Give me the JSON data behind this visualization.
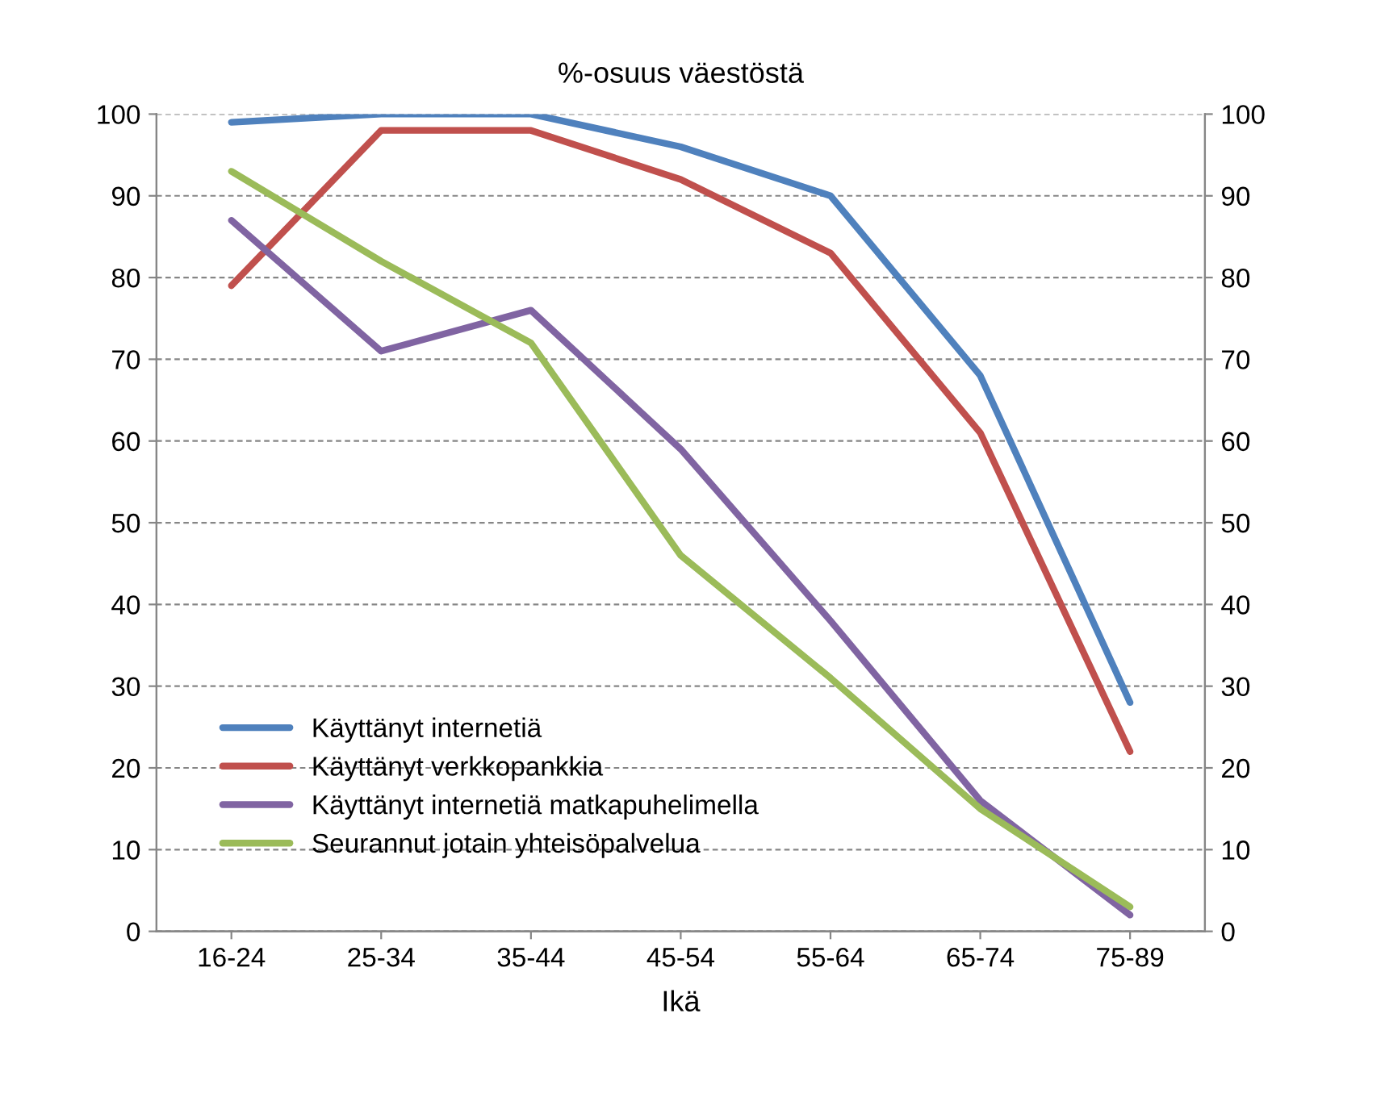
{
  "chart_data": {
    "type": "line",
    "title": "%-osuus väestöstä",
    "xlabel": "Ikä",
    "categories": [
      "16-24",
      "25-34",
      "35-44",
      "45-54",
      "55-64",
      "65-74",
      "75-89"
    ],
    "series": [
      {
        "name": "Käyttänyt internetiä",
        "color": "#4f81bd",
        "values": [
          99,
          100,
          100,
          96,
          90,
          68,
          28
        ]
      },
      {
        "name": "Käyttänyt verkkopankkia",
        "color": "#c0504d",
        "values": [
          79,
          98,
          98,
          92,
          83,
          61,
          22
        ]
      },
      {
        "name": "Käyttänyt internetiä matkapuhelimella",
        "color": "#8064a2",
        "values": [
          87,
          71,
          76,
          59,
          38,
          16,
          2
        ]
      },
      {
        "name": "Seurannut jotain yhteisöpalvelua",
        "color": "#9bbb59",
        "values": [
          93,
          82,
          72,
          46,
          31,
          15,
          3
        ]
      }
    ],
    "ylim": [
      0,
      100
    ],
    "yticks": [
      0,
      10,
      20,
      30,
      40,
      50,
      60,
      70,
      80,
      90,
      100
    ],
    "y2lim": [
      0,
      100
    ],
    "y2ticks": [
      0,
      10,
      20,
      30,
      40,
      50,
      60,
      70,
      80,
      90,
      100
    ],
    "grid": "y",
    "legend": "bottom left",
    "marker": "none",
    "line_style": "solid"
  }
}
